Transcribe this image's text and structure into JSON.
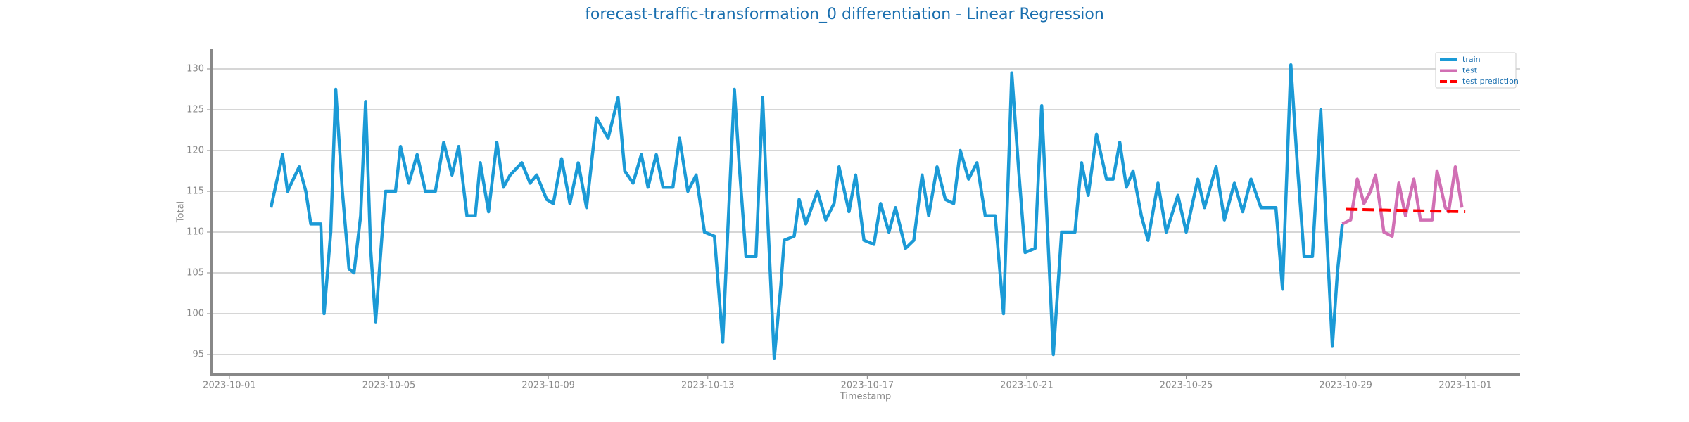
{
  "chart_data": {
    "type": "line",
    "title": "forecast-traffic-transformation_0 differentiation - Linear Regression",
    "xlabel": "Timestamp",
    "ylabel": "Total",
    "xlim": [
      "2023-09-30 13:00",
      "2023-11-02 09:00"
    ],
    "xticks": [
      "2023-10-01",
      "2023-10-05",
      "2023-10-09",
      "2023-10-13",
      "2023-10-17",
      "2023-10-21",
      "2023-10-25",
      "2023-10-29",
      "2023-11-01"
    ],
    "ylim": [
      92.5,
      132.5
    ],
    "yticks": [
      95,
      100,
      105,
      110,
      115,
      120,
      125,
      130
    ],
    "grid": true,
    "legend": "upper right",
    "series": [
      {
        "name": "train",
        "color": "#1b9ad6",
        "dash": false,
        "x": [
          "2023-10-02 01:00",
          "2023-10-02 08:00",
          "2023-10-02 11:00",
          "2023-10-02 18:00",
          "2023-10-02 22:00",
          "2023-10-03 01:00",
          "2023-10-03 07:00",
          "2023-10-03 09:00",
          "2023-10-03 13:00",
          "2023-10-03 16:00",
          "2023-10-03 20:00",
          "2023-10-04 00:00",
          "2023-10-04 03:00",
          "2023-10-04 07:00",
          "2023-10-04 10:00",
          "2023-10-04 13:00",
          "2023-10-04 16:00",
          "2023-10-04 20:00",
          "2023-10-04 22:00",
          "2023-10-05 04:00",
          "2023-10-05 07:00",
          "2023-10-05 12:00",
          "2023-10-05 17:00",
          "2023-10-05 22:00",
          "2023-10-06 04:00",
          "2023-10-06 09:00",
          "2023-10-06 14:00",
          "2023-10-06 18:00",
          "2023-10-06 23:00",
          "2023-10-07 04:00",
          "2023-10-07 07:00",
          "2023-10-07 12:00",
          "2023-10-07 17:00",
          "2023-10-07 21:00",
          "2023-10-08 01:00",
          "2023-10-08 08:00",
          "2023-10-08 13:00",
          "2023-10-08 17:00",
          "2023-10-08 23:00",
          "2023-10-09 03:00",
          "2023-10-09 08:00",
          "2023-10-09 13:00",
          "2023-10-09 18:00",
          "2023-10-09 23:00",
          "2023-10-10 05:00",
          "2023-10-10 12:00",
          "2023-10-10 18:00",
          "2023-10-10 22:00",
          "2023-10-11 03:00",
          "2023-10-11 08:00",
          "2023-10-11 12:00",
          "2023-10-11 17:00",
          "2023-10-11 21:00",
          "2023-10-12 03:00",
          "2023-10-12 07:00",
          "2023-10-12 12:00",
          "2023-10-12 17:00",
          "2023-10-12 22:00",
          "2023-10-13 04:00",
          "2023-10-13 09:00",
          "2023-10-13 12:00",
          "2023-10-13 16:00",
          "2023-10-13 19:00",
          "2023-10-13 23:00",
          "2023-10-14 05:00",
          "2023-10-14 09:00",
          "2023-10-14 12:00",
          "2023-10-14 16:00",
          "2023-10-14 20:00",
          "2023-10-14 22:00",
          "2023-10-15 04:00",
          "2023-10-15 07:00",
          "2023-10-15 11:00",
          "2023-10-15 18:00",
          "2023-10-15 23:00",
          "2023-10-16 04:00",
          "2023-10-16 07:00",
          "2023-10-16 13:00",
          "2023-10-16 17:00",
          "2023-10-16 22:00",
          "2023-10-17 04:00",
          "2023-10-17 08:00",
          "2023-10-17 13:00",
          "2023-10-17 17:00",
          "2023-10-17 23:00",
          "2023-10-18 04:00",
          "2023-10-18 09:00",
          "2023-10-18 13:00",
          "2023-10-18 18:00",
          "2023-10-18 23:00",
          "2023-10-19 04:00",
          "2023-10-19 08:00",
          "2023-10-19 13:00",
          "2023-10-19 18:00",
          "2023-10-19 23:00",
          "2023-10-20 05:00",
          "2023-10-20 10:00",
          "2023-10-20 15:00",
          "2023-10-20 19:00",
          "2023-10-20 23:00",
          "2023-10-21 05:00",
          "2023-10-21 09:00",
          "2023-10-21 16:00",
          "2023-10-21 21:00",
          "2023-10-22 05:00",
          "2023-10-22 09:00",
          "2023-10-22 13:00",
          "2023-10-22 18:00",
          "2023-10-23 00:00",
          "2023-10-23 04:00",
          "2023-10-23 08:00",
          "2023-10-23 12:00",
          "2023-10-23 16:00",
          "2023-10-23 21:00",
          "2023-10-24 01:00",
          "2023-10-24 07:00",
          "2023-10-24 12:00",
          "2023-10-24 19:00",
          "2023-10-25 00:00",
          "2023-10-25 07:00",
          "2023-10-25 11:00",
          "2023-10-25 18:00",
          "2023-10-25 23:00",
          "2023-10-26 05:00",
          "2023-10-26 10:00",
          "2023-10-26 15:00",
          "2023-10-26 21:00",
          "2023-10-27 06:00",
          "2023-10-27 10:00",
          "2023-10-27 15:00",
          "2023-10-27 19:00",
          "2023-10-27 23:00",
          "2023-10-28 04:00",
          "2023-10-28 09:00",
          "2023-10-28 13:00",
          "2023-10-28 16:00",
          "2023-10-28 19:00",
          "2023-10-28 22:00"
        ],
        "values": [
          113,
          119.5,
          115,
          118,
          115,
          111,
          111,
          100,
          110,
          127.5,
          115,
          105.5,
          105,
          112,
          126,
          108,
          99,
          110,
          115,
          115,
          120.5,
          116,
          119.5,
          115,
          115,
          121,
          117,
          120.5,
          112,
          112,
          118.5,
          112.5,
          121,
          115.5,
          117,
          118.5,
          116,
          117,
          114,
          113.5,
          119,
          113.5,
          118.5,
          113,
          124,
          121.5,
          126.5,
          117.5,
          116,
          119.5,
          115.5,
          119.5,
          115.5,
          115.5,
          121.5,
          115,
          117,
          110,
          109.5,
          96.5,
          110,
          127.5,
          118,
          107,
          107,
          126.5,
          112,
          94.5,
          103.5,
          109,
          109.5,
          114,
          111,
          115,
          111.5,
          113.5,
          118,
          112.5,
          117,
          109,
          108.5,
          113.5,
          110,
          113,
          108,
          109,
          117,
          112,
          118,
          114,
          113.5,
          120,
          116.5,
          118.5,
          112,
          112,
          100,
          129.5,
          118,
          107.5,
          108,
          125.5,
          95,
          110,
          110,
          118.5,
          114.5,
          122,
          116.5,
          116.5,
          121,
          115.5,
          117.5,
          112,
          109,
          116,
          110,
          114.5,
          110,
          116.5,
          113,
          118,
          111.5,
          116,
          112.5,
          116.5,
          113,
          113,
          103,
          130.5,
          118,
          107,
          107,
          125,
          108,
          96,
          105,
          111
        ]
      },
      {
        "name": "test",
        "color": "#d16fb4",
        "dash": false,
        "x": [
          "2023-10-28 22:00",
          "2023-10-29 03:00",
          "2023-10-29 07:00",
          "2023-10-29 11:00",
          "2023-10-29 15:00",
          "2023-10-29 18:00",
          "2023-10-29 23:00",
          "2023-10-30 04:00",
          "2023-10-30 08:00",
          "2023-10-30 12:00",
          "2023-10-30 17:00",
          "2023-10-30 21:00",
          "2023-10-31 04:00",
          "2023-10-31 07:00",
          "2023-10-31 12:00",
          "2023-10-31 14:00",
          "2023-10-31 18:00",
          "2023-10-31 22:00"
        ],
        "values": [
          111,
          111.5,
          116.5,
          113.5,
          115,
          117,
          110,
          109.5,
          116,
          112,
          116.5,
          111.5,
          111.5,
          117.5,
          113,
          112.5,
          118,
          113
        ]
      },
      {
        "name": "test prediction",
        "color": "#ff0000",
        "dash": true,
        "x": [
          "2023-10-29 00:00",
          "2023-10-30 00:00",
          "2023-10-31 00:00",
          "2023-11-01 00:00"
        ],
        "values": [
          112.8,
          112.7,
          112.6,
          112.5
        ]
      }
    ]
  }
}
